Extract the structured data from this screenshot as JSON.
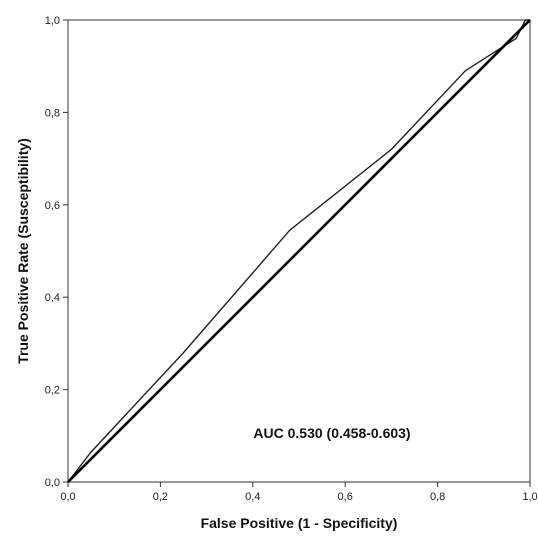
{
  "chart_data": {
    "type": "line",
    "xlabel": "False Positive (1 - Specificity)",
    "ylabel": "True Positive Rate (Susceptibility)",
    "xlim": [
      0,
      1
    ],
    "ylim": [
      0,
      1
    ],
    "x_ticks": [
      "0,0",
      "0,2",
      "0,4",
      "0,6",
      "0,8",
      "1,0"
    ],
    "y_ticks": [
      "0,0",
      "0,2",
      "0,4",
      "0,6",
      "0,8",
      "1,0"
    ],
    "grid": false,
    "annotation": "AUC 0.530 (0.458-0.603)",
    "series": [
      {
        "type": "roc_curve",
        "x": [
          0.0,
          0.05,
          0.25,
          0.48,
          0.7,
          0.86,
          0.93,
          0.97,
          0.99,
          1.0
        ],
        "y": [
          0.0,
          0.065,
          0.28,
          0.545,
          0.72,
          0.89,
          0.935,
          0.96,
          1.0,
          1.0
        ],
        "color": "#222222"
      },
      {
        "type": "reference_diagonal",
        "x": [
          0,
          1
        ],
        "y": [
          0,
          1
        ],
        "color": "#000000"
      }
    ]
  }
}
